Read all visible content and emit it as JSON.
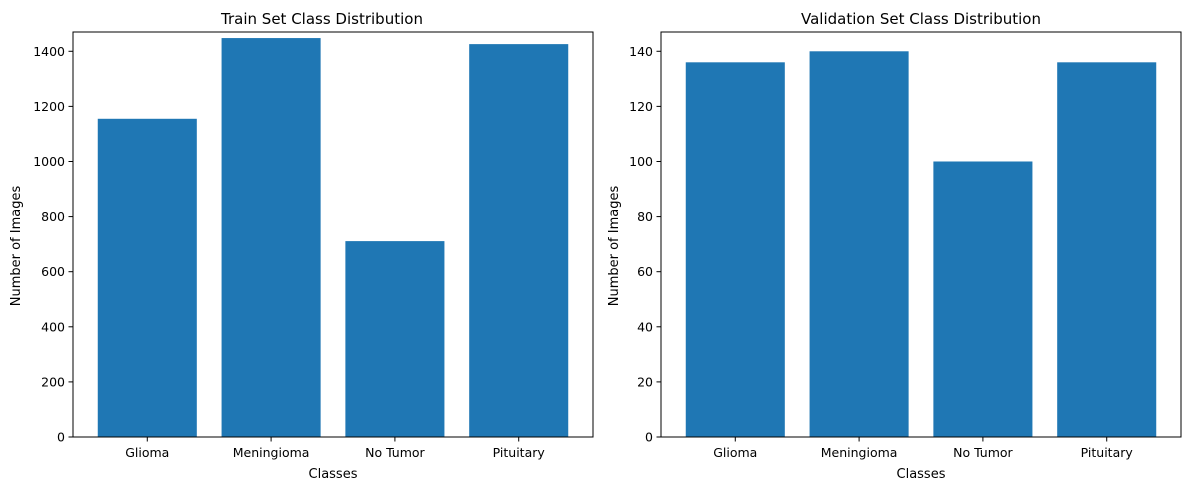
{
  "chart_data": [
    {
      "type": "bar",
      "title": "Train Set Class Distribution",
      "xlabel": "Classes",
      "ylabel": "Number of Images",
      "categories": [
        "Glioma",
        "Meningioma",
        "No Tumor",
        "Pituitary"
      ],
      "values": [
        1155,
        1448,
        711,
        1426
      ],
      "ylim": [
        0,
        1470
      ],
      "yticks": [
        0,
        200,
        400,
        600,
        800,
        1000,
        1200,
        1400
      ],
      "grid": false,
      "bar_color": "#1f77b4"
    },
    {
      "type": "bar",
      "title": "Validation Set Class Distribution",
      "xlabel": "Classes",
      "ylabel": "Number of Images",
      "categories": [
        "Glioma",
        "Meningioma",
        "No Tumor",
        "Pituitary"
      ],
      "values": [
        136,
        140,
        100,
        136
      ],
      "ylim": [
        0,
        147
      ],
      "yticks": [
        0,
        20,
        40,
        60,
        80,
        100,
        120,
        140
      ],
      "grid": false,
      "bar_color": "#1f77b4"
    }
  ]
}
